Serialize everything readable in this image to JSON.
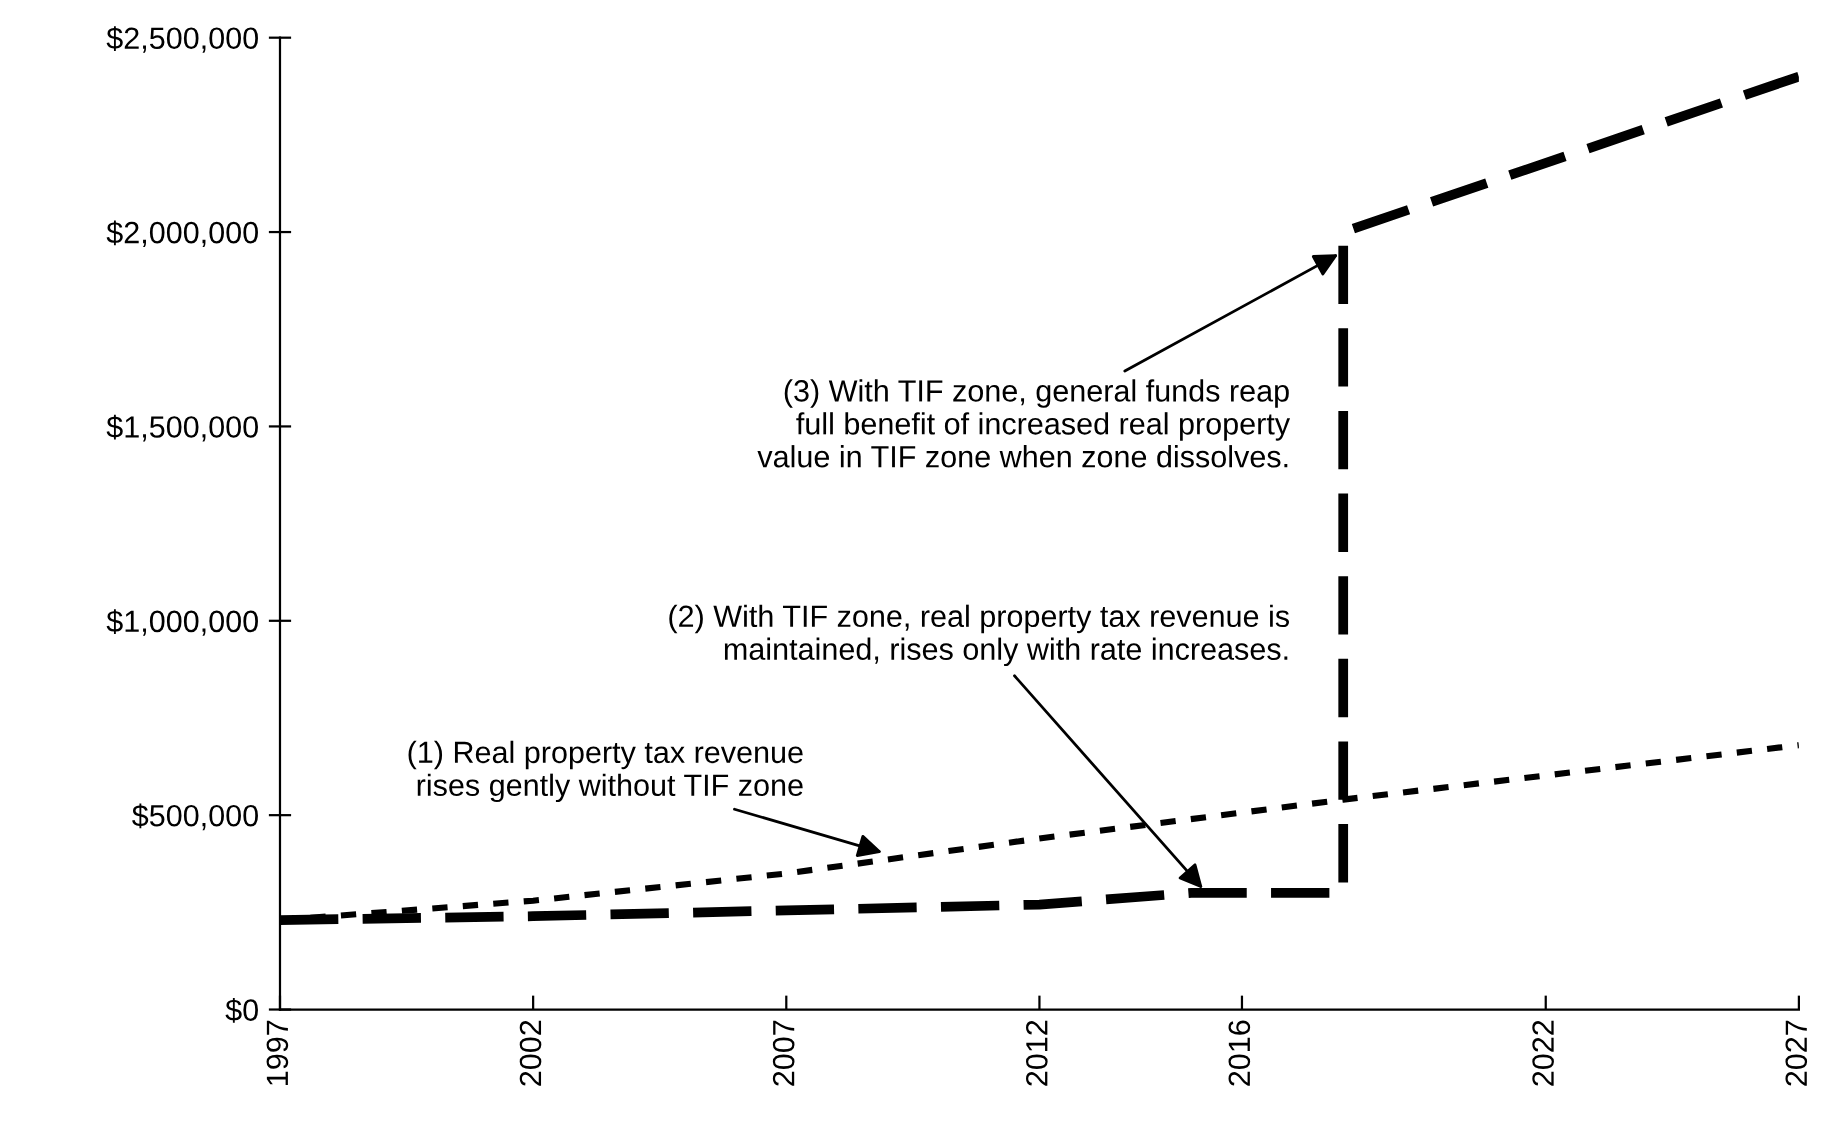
{
  "chart_data": {
    "type": "line",
    "xlim": [
      1997,
      2027
    ],
    "xticks": [
      1997,
      2002,
      2007,
      2012,
      2016,
      2022,
      2027
    ],
    "ylim": [
      0,
      2500000
    ],
    "yticks": [
      {
        "value": 0,
        "label": "$0"
      },
      {
        "value": 500000,
        "label": "$500,000"
      },
      {
        "value": 1000000,
        "label": "$1,000,000"
      },
      {
        "value": 1500000,
        "label": "$1,500,000"
      },
      {
        "value": 2000000,
        "label": "$2,000,000"
      },
      {
        "value": 2500000,
        "label": "$2,500,000"
      }
    ],
    "grid": false,
    "marker": "none",
    "series": [
      {
        "color": "#000000",
        "line_style": "dotted",
        "x": [
          1997,
          2002,
          2007,
          2012,
          2018,
          2027
        ],
        "values": [
          230000,
          280000,
          350000,
          440000,
          540000,
          680000
        ]
      },
      {
        "color": "#000000",
        "line_style": "dashed",
        "x": [
          1997,
          2002,
          2007,
          2012,
          2015,
          2018,
          2018,
          2027
        ],
        "values": [
          230000,
          240000,
          255000,
          270000,
          300000,
          300000,
          2000000,
          2400000
        ]
      }
    ],
    "annotations": [
      {
        "text": "(1) Real property tax revenue\nrises gently without TIF zone",
        "x": 2009,
        "y": 400000
      },
      {
        "text": "(2) With TIF zone, real property tax revenue is\nmaintained, rises only with rate increases.",
        "x": 2015.3,
        "y": 300000
      },
      {
        "text": "(3) With TIF zone, general funds reap\nfull benefit of increased real property\nvalue in TIF zone when zone dissolves.",
        "x": 2018,
        "y": 1950000
      }
    ]
  }
}
